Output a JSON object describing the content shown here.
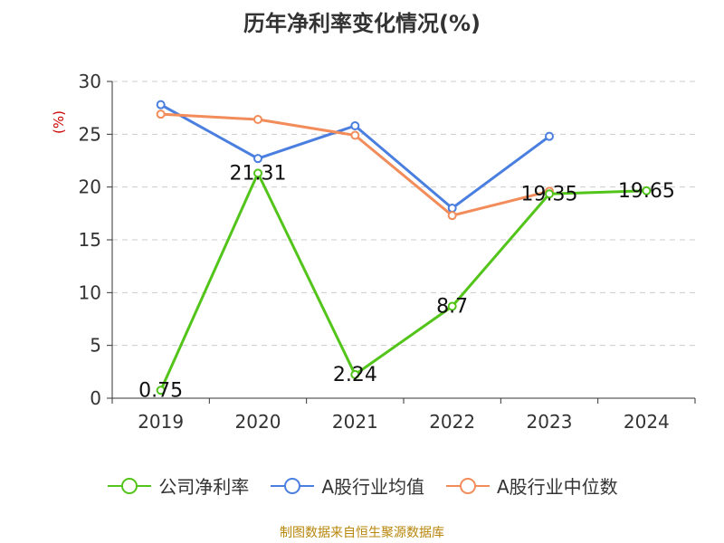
{
  "title": "历年净利率变化情况(%)",
  "unit_label": "(%)",
  "source": "制图数据来自恒生聚源数据库",
  "colors": {
    "net_margin": "#52c41a",
    "industry_avg": "#4a7fe0",
    "industry_median": "#f28c5a",
    "axis": "#333333",
    "grid": "#cccccc"
  },
  "chart_data": {
    "type": "line",
    "x": [
      "2019",
      "2020",
      "2021",
      "2022",
      "2023",
      "2024"
    ],
    "ylim": [
      0,
      30
    ],
    "yticks": [
      0,
      5,
      10,
      15,
      20,
      25,
      30
    ],
    "grid": true,
    "legend_position": "bottom",
    "series": [
      {
        "name": "公司净利率",
        "values": [
          0.75,
          21.31,
          2.24,
          8.7,
          19.35,
          19.65
        ],
        "labels": [
          "0.75",
          "21.31",
          "2.24",
          "8.7",
          "19.35",
          "19.65"
        ]
      },
      {
        "name": "A股行业均值",
        "values": [
          27.8,
          22.7,
          25.8,
          18.0,
          24.8,
          null
        ]
      },
      {
        "name": "A股行业中位数",
        "values": [
          26.9,
          26.4,
          24.9,
          17.3,
          19.6,
          null
        ]
      }
    ]
  }
}
